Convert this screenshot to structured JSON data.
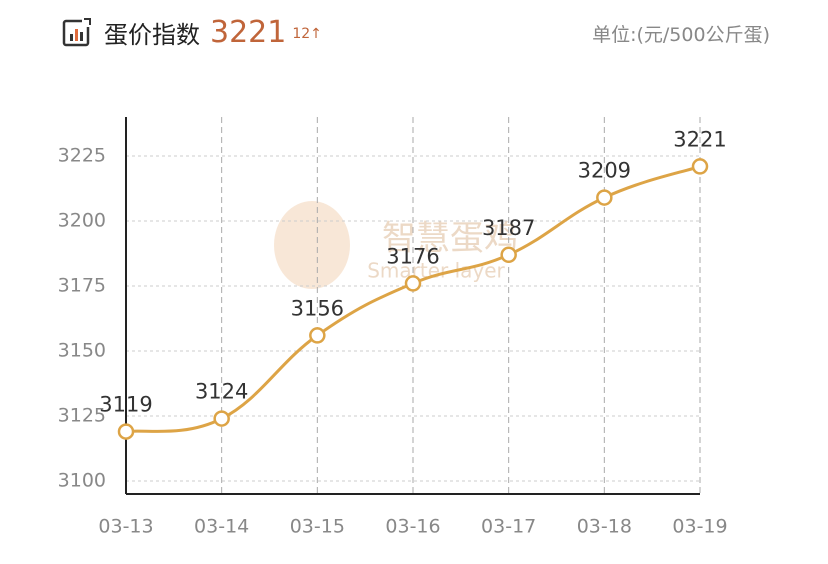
{
  "header": {
    "title": "蛋价指数",
    "index": "3221",
    "change": "12↑",
    "unit": "单位:(元/500公斤蛋)"
  },
  "watermark": {
    "name": "智慧蛋鸡",
    "sub": "Smarter layer"
  },
  "chart_data": {
    "type": "line",
    "categories": [
      "03-13",
      "03-14",
      "03-15",
      "03-16",
      "03-17",
      "03-18",
      "03-19"
    ],
    "series": [
      {
        "name": "蛋价指数",
        "color": "#dda446",
        "values": [
          3119,
          3124,
          3156,
          3176,
          3187,
          3209,
          3221
        ]
      }
    ],
    "ylim": [
      3095,
      3240
    ],
    "yticks": [
      3100,
      3125,
      3150,
      3175,
      3200,
      3225
    ],
    "grid": true
  }
}
